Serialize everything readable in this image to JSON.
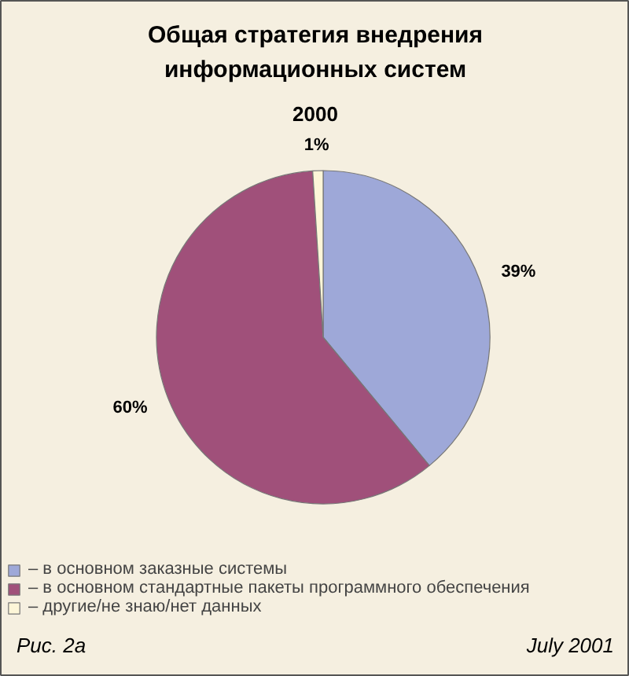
{
  "chart_data": {
    "type": "pie",
    "title": "Общая стратегия внедрения\nинформационных систем",
    "subtitle": "2000",
    "categories": [
      "– в основном заказные системы",
      "– в основном стандартные пакеты программного обеспечения",
      "– другие/не знаю/нет данных"
    ],
    "values": [
      39,
      60,
      1
    ],
    "colors": [
      "#9ea8d8",
      "#a0507a",
      "#fdf6d8"
    ],
    "value_labels": [
      "39%",
      "60%",
      "1%"
    ],
    "legend": "bottom",
    "annotations": [
      "Рис. 2а",
      "July 2001"
    ]
  }
}
